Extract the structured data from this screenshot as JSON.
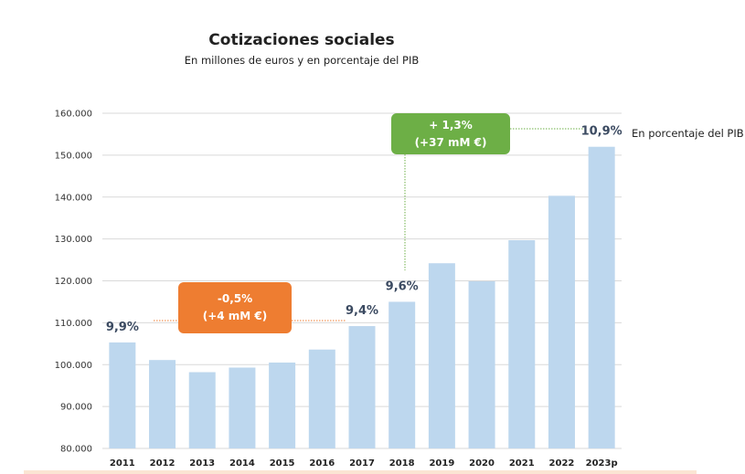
{
  "chart_data": {
    "type": "bar",
    "title": "Cotizaciones sociales",
    "subtitle": "En millones de euros y en porcentaje del PIB",
    "categories": [
      "2011",
      "2012",
      "2013",
      "2014",
      "2015",
      "2016",
      "2017",
      "2018",
      "2019",
      "2020",
      "2021",
      "2022",
      "2023p"
    ],
    "values": [
      105300,
      101100,
      98200,
      99300,
      100500,
      103600,
      109200,
      115000,
      124200,
      119900,
      129700,
      140300,
      152000
    ],
    "ylim": [
      80000,
      160000
    ],
    "yticks": [
      80000,
      90000,
      100000,
      110000,
      120000,
      130000,
      140000,
      150000,
      160000
    ],
    "ytick_labels": [
      "80.000",
      "90.000",
      "100.000",
      "110.000",
      "120.000",
      "130.000",
      "140.000",
      "150.000",
      "160.000"
    ],
    "grid": true,
    "bar_color": "#bdd7ee",
    "pib_labels": [
      {
        "category": "2011",
        "text": "9,9%"
      },
      {
        "category": "2017",
        "text": "9,4%"
      },
      {
        "category": "2018",
        "text": "9,6%"
      },
      {
        "category": "2023p",
        "text": "10,9%"
      }
    ],
    "pib_note": "En porcentaje del PIB",
    "annotations": [
      {
        "id": "orange",
        "line1": "-0,5%",
        "line2": "(+4 mM €)",
        "color": "#ee7d31"
      },
      {
        "id": "green",
        "line1": "+ 1,3%",
        "line2": "(+37 mM €)",
        "color": "#6daf46"
      }
    ]
  }
}
